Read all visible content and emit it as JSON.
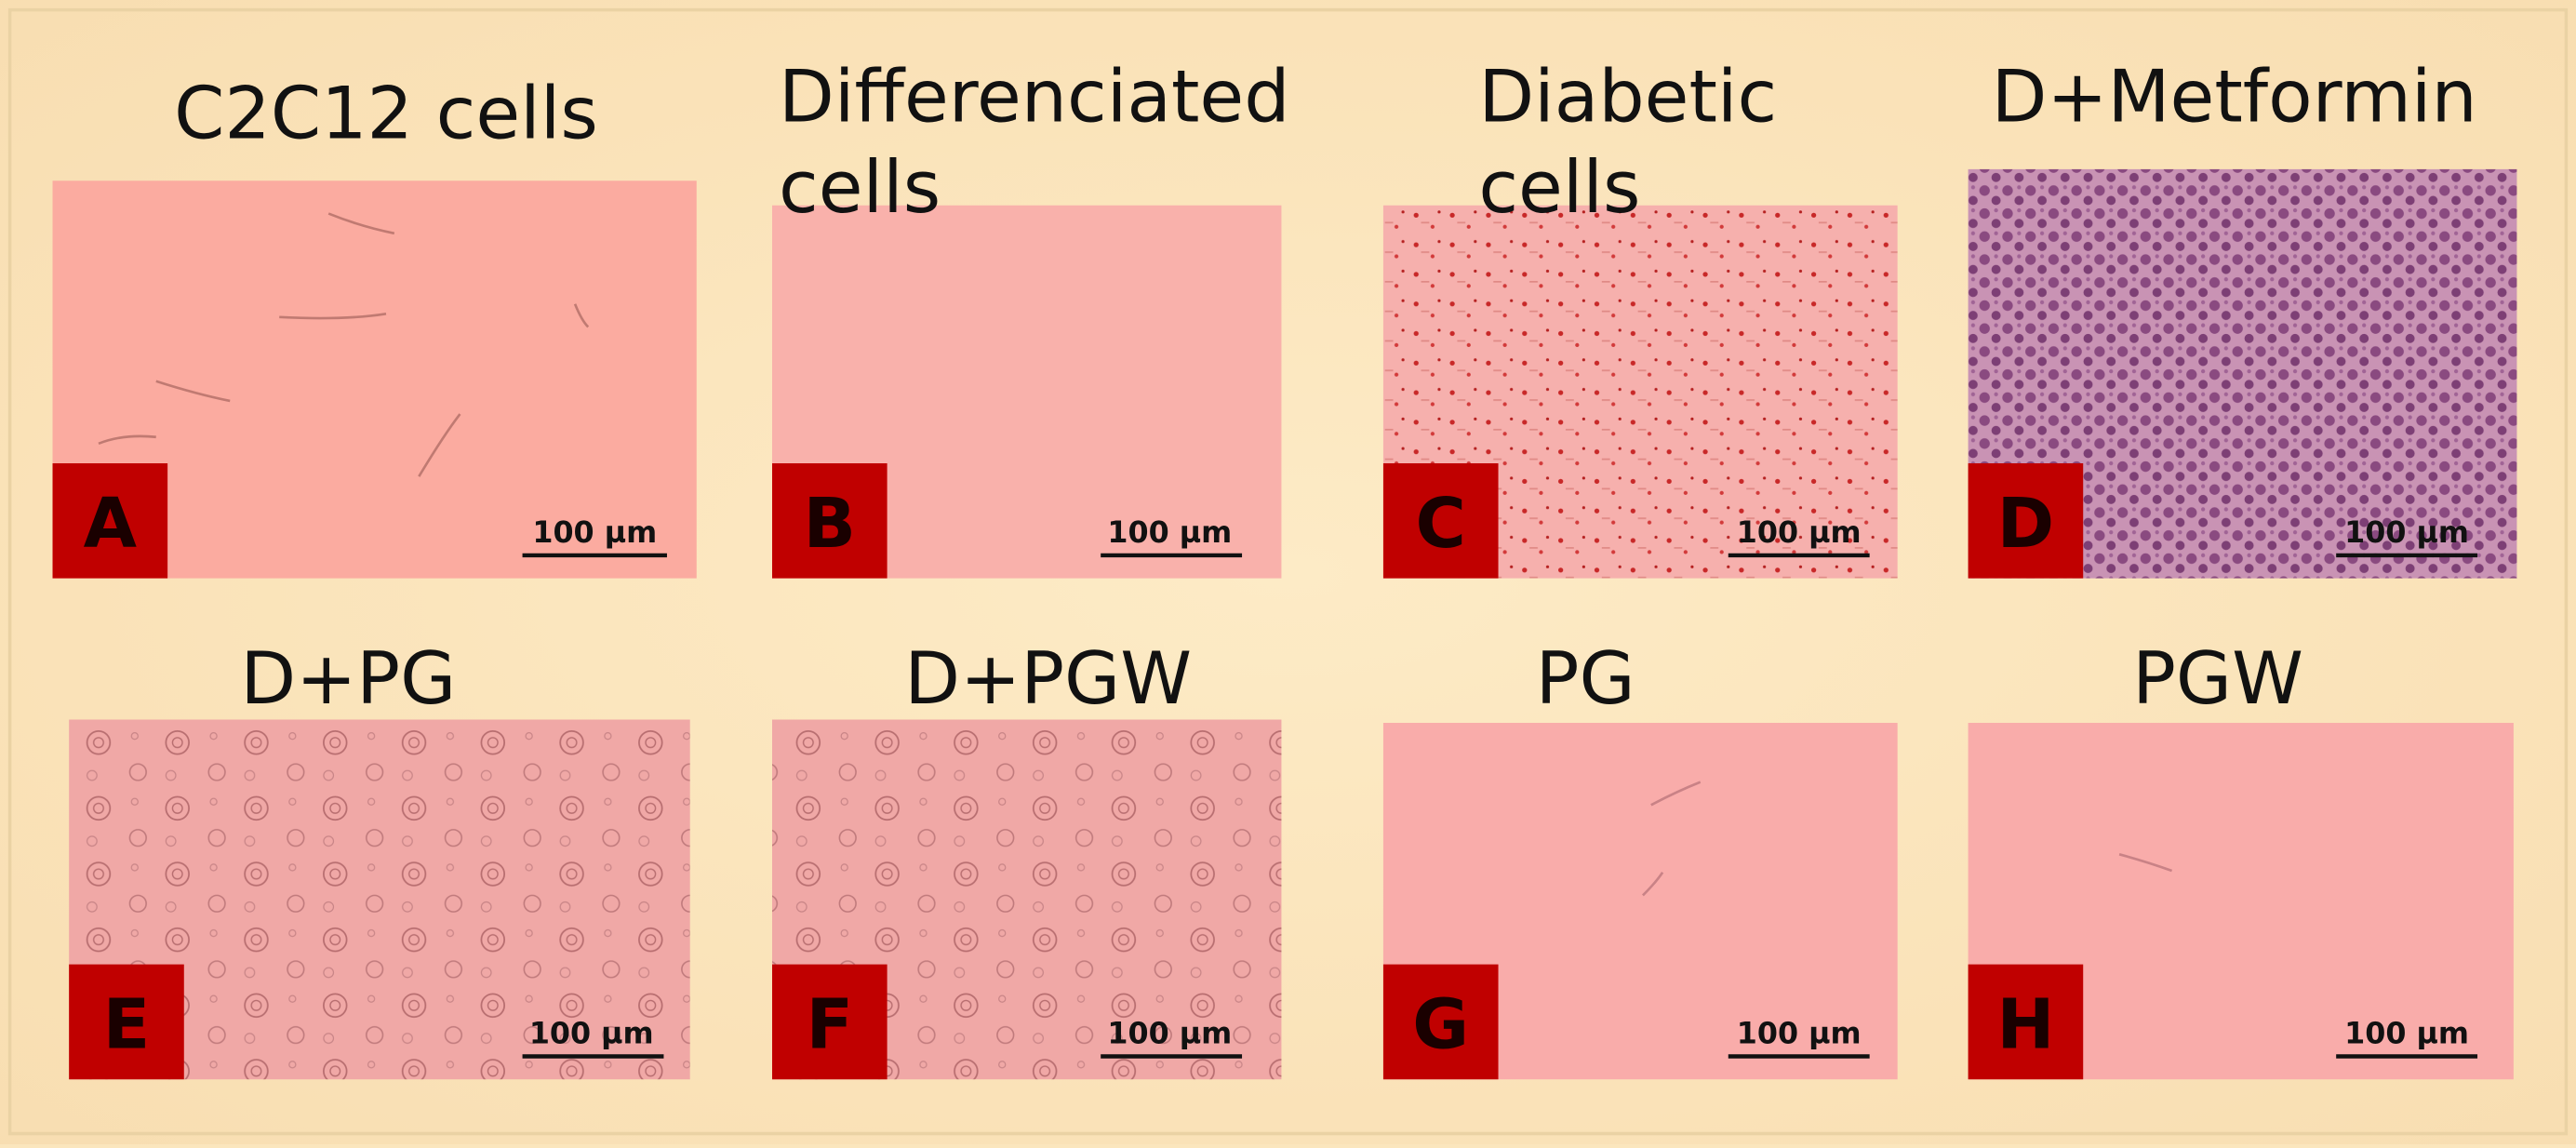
{
  "panels": [
    {
      "title": [
        "C2C12 cells"
      ],
      "letter": "A",
      "scale_bar": "100 µm"
    },
    {
      "title": [
        "Differenciated",
        "cells"
      ],
      "letter": "B",
      "scale_bar": "100 µm"
    },
    {
      "title": [
        "Diabetic",
        "cells"
      ],
      "letter": "C",
      "scale_bar": "100 µm"
    },
    {
      "title": [
        "D+Metformin"
      ],
      "letter": "D",
      "scale_bar": "100 µm"
    },
    {
      "title": [
        "D+PG"
      ],
      "letter": "E",
      "scale_bar": "100 µm"
    },
    {
      "title": [
        "D+PGW"
      ],
      "letter": "F",
      "scale_bar": "100 µm"
    },
    {
      "title": [
        "PG"
      ],
      "letter": "G",
      "scale_bar": "100 µm"
    },
    {
      "title": [
        "PGW"
      ],
      "letter": "H",
      "scale_bar": "100 µm"
    }
  ]
}
